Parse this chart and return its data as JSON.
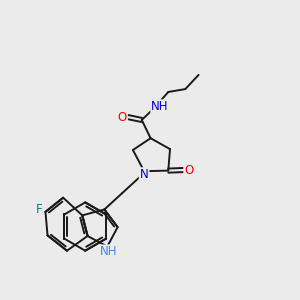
{
  "background_color": "#ebebeb",
  "bond_color": "#1a1a1a",
  "atom_colors": {
    "N": "#0000cc",
    "O": "#ff0000",
    "F": "#008888",
    "NH_indole": "#4488ff",
    "C": "#1a1a1a"
  },
  "figsize": [
    3.0,
    3.0
  ],
  "dpi": 100,
  "lw": 1.4,
  "fs": 8.5
}
